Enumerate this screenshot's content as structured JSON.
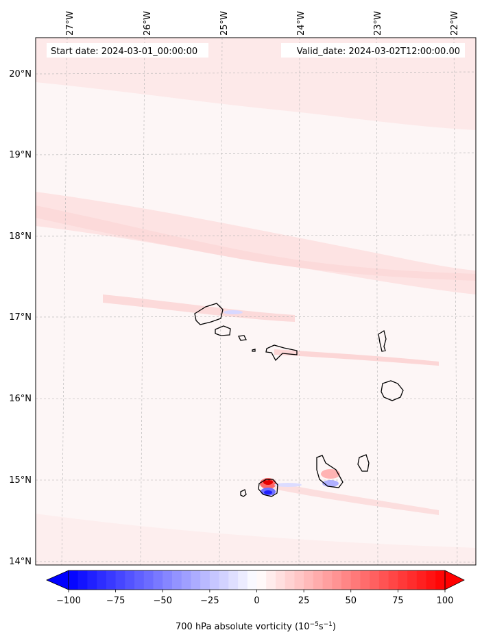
{
  "map": {
    "start_label": "Start date: 2024-03-01_00:00:00",
    "valid_label": "Valid_date: 2024-03-02T12:00:00.00",
    "lon_labels": [
      "27°W",
      "26°W",
      "25°W",
      "24°W",
      "23°W",
      "22°W"
    ],
    "lat_labels": [
      "20°N",
      "19°N",
      "18°N",
      "17°N",
      "16°N",
      "15°N",
      "14°N"
    ],
    "extent": {
      "lon": [
        -27.35,
        -21.8
      ],
      "lat": [
        13.95,
        20.45
      ]
    }
  },
  "colorbar": {
    "ticks": [
      -100,
      -75,
      -50,
      -25,
      0,
      25,
      50,
      75,
      100
    ],
    "tick_labels": [
      "−100",
      "−75",
      "−50",
      "−25",
      "0",
      "25",
      "50",
      "75",
      "100"
    ],
    "label_prefix": "700 hPa absolute vorticity (10",
    "label_exp1": "−5",
    "label_mid": "s",
    "label_exp2": "−1",
    "label_suffix": ")",
    "min_color": "#0000ff",
    "mid_color": "#ffffff",
    "max_color": "#ff0000"
  }
}
